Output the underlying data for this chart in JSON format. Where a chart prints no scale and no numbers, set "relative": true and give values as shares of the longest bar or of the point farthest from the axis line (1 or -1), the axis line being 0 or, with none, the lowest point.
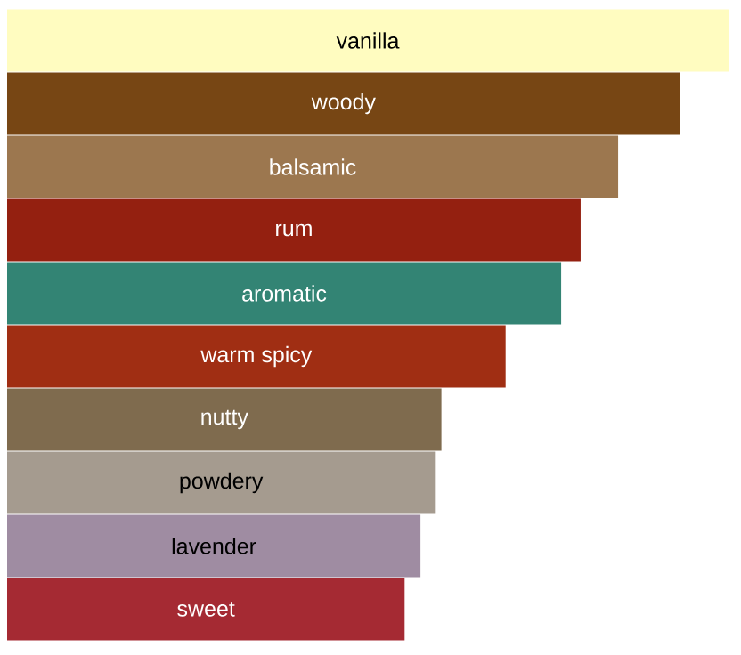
{
  "chart_data": {
    "type": "bar",
    "orientation": "horizontal",
    "relative": true,
    "data_labels": false,
    "categories": [
      "vanilla",
      "woody",
      "balsamic",
      "rum",
      "aromatic",
      "warm spicy",
      "nutty",
      "powdery",
      "lavender",
      "sweet"
    ],
    "values": [
      1,
      0.933,
      0.847,
      0.795,
      0.768,
      0.691,
      0.602,
      0.593,
      0.573,
      0.551
    ],
    "colors": [
      "#fffcc0",
      "#774614",
      "#9c774f",
      "#942010",
      "#338474",
      "#a02e13",
      "#7f6b4e",
      "#a59b8f",
      "#9f8ca2",
      "#a52a33"
    ]
  }
}
